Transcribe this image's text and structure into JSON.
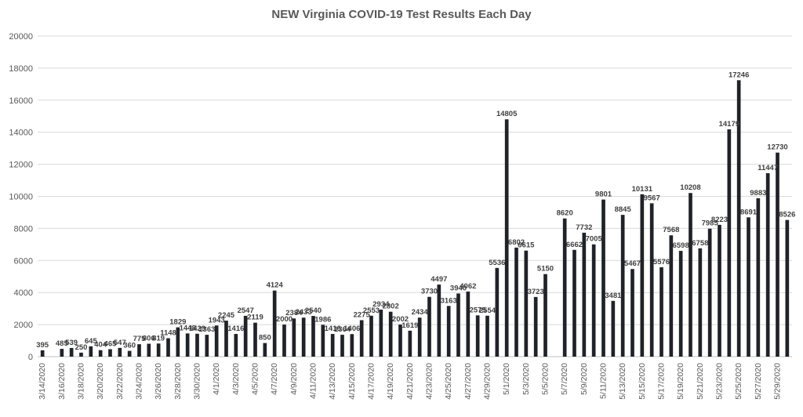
{
  "chart_data": {
    "type": "bar",
    "title": "NEW Virginia COVID-19 Test Results Each Day",
    "xlabel": "",
    "ylabel": "",
    "ylim": [
      0,
      20000
    ],
    "yticks": [
      0,
      2000,
      4000,
      6000,
      8000,
      10000,
      12000,
      14000,
      16000,
      18000,
      20000
    ],
    "grid": true,
    "legend": "none",
    "bar_color": "#1f2328",
    "categories": [
      "3/14/2020",
      "3/15/2020",
      "3/16/2020",
      "3/17/2020",
      "3/18/2020",
      "3/19/2020",
      "3/20/2020",
      "3/21/2020",
      "3/22/2020",
      "3/23/2020",
      "3/24/2020",
      "3/25/2020",
      "3/26/2020",
      "3/27/2020",
      "3/28/2020",
      "3/29/2020",
      "3/30/2020",
      "3/31/2020",
      "4/1/2020",
      "4/2/2020",
      "4/3/2020",
      "4/4/2020",
      "4/5/2020",
      "4/6/2020",
      "4/7/2020",
      "4/8/2020",
      "4/9/2020",
      "4/10/2020",
      "4/11/2020",
      "4/12/2020",
      "4/13/2020",
      "4/14/2020",
      "4/15/2020",
      "4/16/2020",
      "4/17/2020",
      "4/18/2020",
      "4/19/2020",
      "4/20/2020",
      "4/21/2020",
      "4/22/2020",
      "4/23/2020",
      "4/24/2020",
      "4/25/2020",
      "4/26/2020",
      "4/27/2020",
      "4/28/2020",
      "4/29/2020",
      "4/30/2020",
      "5/1/2020",
      "5/2/2020",
      "5/3/2020",
      "5/4/2020",
      "5/5/2020",
      "5/6/2020",
      "5/7/2020",
      "5/8/2020",
      "5/9/2020",
      "5/10/2020",
      "5/11/2020",
      "5/12/2020",
      "5/13/2020",
      "5/14/2020",
      "5/15/2020",
      "5/16/2020",
      "5/17/2020",
      "5/18/2020",
      "5/19/2020",
      "5/20/2020",
      "5/21/2020",
      "5/22/2020",
      "5/23/2020",
      "5/24/2020",
      "5/25/2020",
      "5/26/2020",
      "5/27/2020",
      "5/28/2020",
      "5/29/2020",
      "5/30/2020"
    ],
    "tick_labels": [
      "3/14/2020",
      "",
      "3/16/2020",
      "",
      "3/18/2020",
      "",
      "3/20/2020",
      "",
      "3/22/2020",
      "",
      "3/24/2020",
      "",
      "3/26/2020",
      "",
      "3/28/2020",
      "",
      "3/30/2020",
      "",
      "4/1/2020",
      "",
      "4/3/2020",
      "",
      "4/5/2020",
      "",
      "4/7/2020",
      "",
      "4/9/2020",
      "",
      "4/11/2020",
      "",
      "4/13/2020",
      "",
      "4/15/2020",
      "",
      "4/17/2020",
      "",
      "4/19/2020",
      "",
      "4/21/2020",
      "",
      "4/23/2020",
      "",
      "4/25/2020",
      "",
      "4/27/2020",
      "",
      "4/29/2020",
      "",
      "5/1/2020",
      "",
      "5/3/2020",
      "",
      "5/5/2020",
      "",
      "5/7/2020",
      "",
      "5/9/2020",
      "",
      "5/11/2020",
      "",
      "5/13/2020",
      "",
      "5/15/2020",
      "",
      "5/17/2020",
      "",
      "5/19/2020",
      "",
      "5/21/2020",
      "",
      "5/23/2020",
      "",
      "5/25/2020",
      "",
      "5/27/2020",
      "",
      "5/29/2020",
      ""
    ],
    "values": [
      395,
      null,
      485,
      539,
      250,
      645,
      404,
      465,
      547,
      360,
      775,
      806,
      819,
      1148,
      1829,
      1448,
      1429,
      1363,
      1943,
      2245,
      1416,
      2547,
      2119,
      850,
      4124,
      2000,
      2384,
      2433,
      2540,
      1986,
      1416,
      1364,
      1406,
      2275,
      2553,
      2934,
      2802,
      2002,
      1619,
      2434,
      3730,
      4497,
      3163,
      3940,
      4062,
      2575,
      2554,
      5536,
      14805,
      6802,
      6615,
      3723,
      5150,
      null,
      8620,
      6662,
      7732,
      7005,
      9801,
      3481,
      8845,
      5467,
      10131,
      9567,
      5576,
      7568,
      6598,
      10208,
      6758,
      7985,
      8223,
      14179,
      17246,
      8691,
      9883,
      11447,
      12730,
      8526
    ],
    "data_labels": [
      "395",
      "",
      "485",
      "539",
      "250",
      "645",
      "404",
      "465",
      "547",
      "360",
      "775",
      "806",
      "819",
      "1148",
      "1829",
      "1448",
      "1429",
      "1363",
      "1943",
      "2245",
      "1416",
      "2547",
      "2119",
      "850",
      "4124",
      "2000",
      "2384",
      "2433",
      "2540",
      "1986",
      "1416",
      "1364",
      "1406",
      "2275",
      "2553",
      "2934",
      "2802",
      "2002",
      "1619",
      "2434",
      "3730",
      "4497",
      "3163",
      "3940",
      "4062",
      "2575",
      "2554",
      "5536",
      "14805",
      "6802",
      "6615",
      "3723",
      "5150",
      "",
      "8620",
      "6662",
      "7732",
      "7005",
      "9801",
      "3481",
      "8845",
      "5467",
      "10131",
      "9567",
      "5576",
      "7568",
      "6598",
      "10208",
      "6758",
      "7985",
      "8223",
      "14179",
      "17246",
      "8691",
      "9883",
      "11447",
      "12730",
      "8526"
    ]
  }
}
